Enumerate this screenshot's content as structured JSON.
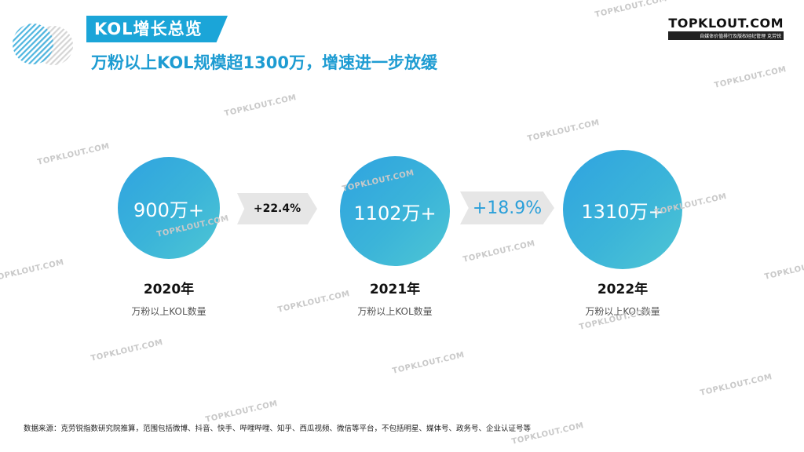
{
  "header": {
    "badge": "KOL增长总览",
    "subtitle": "万粉以上KOL规模超1300万，增速进一步放缓"
  },
  "brand": {
    "name": "TOPKLOUT.COM",
    "tagline": "自媒体价值排行及版权经纪管理  克劳锐"
  },
  "chart_data": {
    "type": "bar",
    "categories": [
      "2020年",
      "2021年",
      "2022年"
    ],
    "value_labels": [
      "900万+",
      "1102万+",
      "1310万+"
    ],
    "values": [
      900,
      1102,
      1310
    ],
    "unit": "万",
    "metric_label": "万粉以上KOL数量",
    "growth": [
      "+22.4%",
      "+18.9%"
    ]
  },
  "footnote": "数据来源：克劳锐指数研究院推算，范围包括微博、抖音、快手、哔哩哔哩、知乎、西瓜视频、微信等平台，不包括明星、媒体号、政务号、企业认证号等",
  "watermark": "TOPKLOUT.COM",
  "colors": {
    "accent": "#1ba5d8",
    "circle": "#3bb4d9",
    "arrow": "#e6e6e6"
  }
}
